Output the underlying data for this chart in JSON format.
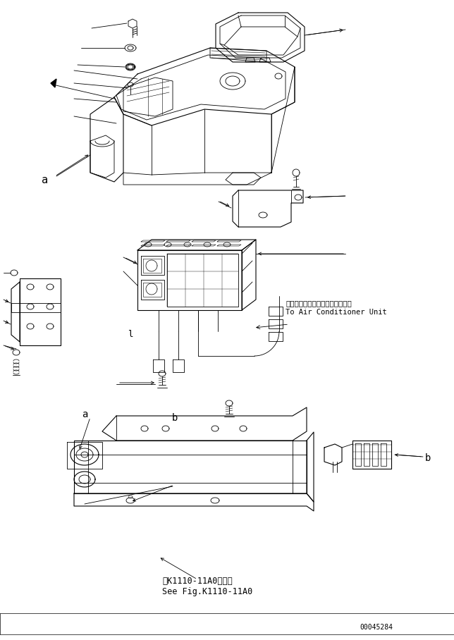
{
  "bg_color": "#ffffff",
  "line_color": "#000000",
  "figsize": [
    6.44,
    9.08
  ],
  "dpi": 100,
  "annotations": {
    "air_conditioner_jp": "エアーコンディショナユニットへ",
    "air_conditioner_en": "To Air Conditioner Unit",
    "see_fig_jp": "第K1110-11A0図参照",
    "see_fig_en": "See Fig.K1110-11A0",
    "part_num": "00045284",
    "label_a_top": "a",
    "label_a_bottom": "a",
    "label_b_top": "b",
    "label_b_arrow": "b",
    "label_l": "l"
  }
}
